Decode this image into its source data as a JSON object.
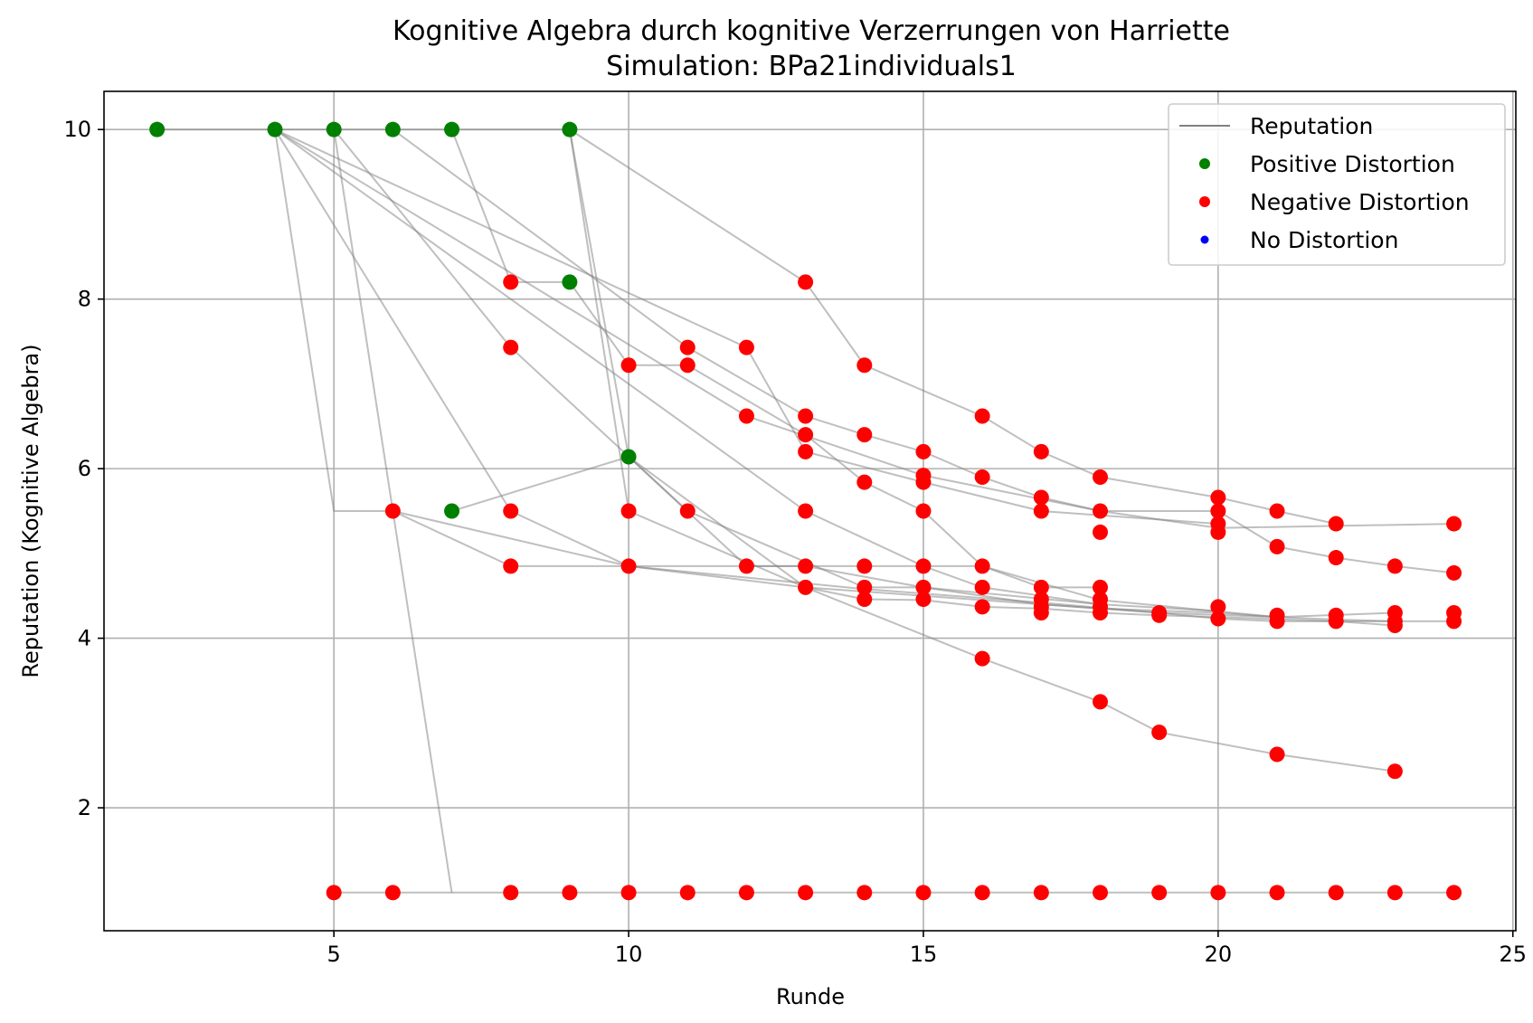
{
  "chart_data": {
    "type": "scatter",
    "title": "Kognitive Algebra durch kognitive Verzerrungen von Harriette",
    "subtitle": "Simulation: BPa21individuals1",
    "xlabel": "Runde",
    "ylabel": "Reputation (Kognitive Algebra)",
    "xlim": [
      1.1,
      25.05
    ],
    "ylim": [
      0.55,
      10.45
    ],
    "xticks": [
      5,
      10,
      15,
      20,
      25
    ],
    "yticks": [
      2,
      4,
      6,
      8,
      10
    ],
    "grid": true,
    "legend_position": "top-right",
    "legend": [
      {
        "label": "Reputation",
        "kind": "line",
        "color": "#808080"
      },
      {
        "label": "Positive Distortion",
        "kind": "marker",
        "color": "#008000"
      },
      {
        "label": "Negative Distortion",
        "kind": "marker",
        "color": "#ff0000"
      },
      {
        "label": "No Distortion",
        "kind": "marker",
        "color": "#0000ff"
      }
    ],
    "colors": {
      "positive": "#008000",
      "negative": "#ff0000",
      "line": "#808080"
    },
    "lines": [
      [
        [
          2,
          10
        ],
        [
          4,
          10
        ],
        [
          5,
          10
        ],
        [
          6,
          10
        ],
        [
          7,
          10
        ],
        [
          9,
          10
        ]
      ],
      [
        [
          5,
          1
        ],
        [
          6,
          1
        ],
        [
          8,
          1
        ],
        [
          9,
          1
        ],
        [
          10,
          1
        ],
        [
          11,
          1
        ],
        [
          12,
          1
        ],
        [
          13,
          1
        ],
        [
          14,
          1
        ],
        [
          15,
          1
        ],
        [
          16,
          1
        ],
        [
          17,
          1
        ],
        [
          18,
          1
        ],
        [
          19,
          1
        ],
        [
          20,
          1
        ],
        [
          21,
          1
        ],
        [
          22,
          1
        ],
        [
          23,
          1
        ],
        [
          24,
          1
        ]
      ],
      [
        [
          9,
          10
        ],
        [
          13,
          8.2
        ],
        [
          14,
          7.22
        ],
        [
          16,
          6.62
        ],
        [
          17,
          6.2
        ],
        [
          18,
          5.9
        ],
        [
          20,
          5.66
        ],
        [
          21,
          5.5
        ],
        [
          22,
          5.35
        ]
      ],
      [
        [
          7,
          10
        ],
        [
          8,
          8.2
        ],
        [
          9,
          8.2
        ],
        [
          10,
          7.22
        ],
        [
          11,
          7.22
        ],
        [
          13,
          6.4
        ],
        [
          14,
          5.84
        ],
        [
          15,
          5.5
        ],
        [
          16,
          4.85
        ],
        [
          17,
          4.6
        ],
        [
          18,
          4.6
        ]
      ],
      [
        [
          6,
          10
        ],
        [
          11,
          7.43
        ],
        [
          13,
          6.62
        ],
        [
          14,
          6.4
        ],
        [
          15,
          6.2
        ],
        [
          16,
          5.9
        ],
        [
          17,
          5.66
        ],
        [
          18,
          5.5
        ],
        [
          20,
          5.5
        ],
        [
          21,
          5.08
        ],
        [
          22,
          4.95
        ],
        [
          23,
          4.85
        ],
        [
          24,
          4.77
        ]
      ],
      [
        [
          5,
          10
        ],
        [
          8,
          7.43
        ],
        [
          11,
          5.5
        ],
        [
          14,
          4.6
        ],
        [
          15,
          4.6
        ],
        [
          18,
          4.4
        ]
      ],
      [
        [
          4,
          10
        ],
        [
          12,
          7.43
        ],
        [
          13,
          6.2
        ],
        [
          15,
          5.84
        ],
        [
          17,
          5.5
        ],
        [
          20,
          5.35
        ]
      ],
      [
        [
          4,
          10
        ],
        [
          12,
          6.62
        ],
        [
          15,
          5.92
        ],
        [
          18,
          5.5
        ],
        [
          20,
          5.3
        ],
        [
          24,
          5.35
        ]
      ],
      [
        [
          4,
          10
        ],
        [
          13,
          5.5
        ],
        [
          15,
          4.85
        ],
        [
          16,
          4.6
        ],
        [
          17,
          4.5
        ],
        [
          18,
          4.4
        ],
        [
          20,
          4.32
        ]
      ],
      [
        [
          4,
          10
        ],
        [
          8,
          5.5
        ],
        [
          10,
          4.85
        ],
        [
          13,
          4.6
        ],
        [
          15,
          4.5
        ],
        [
          18,
          4.35
        ],
        [
          20,
          4.3
        ],
        [
          21,
          4.25
        ],
        [
          22,
          4.22
        ],
        [
          23,
          4.2
        ],
        [
          24,
          4.2
        ]
      ],
      [
        [
          4,
          10
        ],
        [
          5,
          5.5
        ],
        [
          6,
          5.5
        ],
        [
          7,
          1
        ]
      ],
      [
        [
          7,
          5.5
        ],
        [
          10,
          6.14
        ],
        [
          12,
          4.85
        ],
        [
          14,
          4.85
        ],
        [
          16,
          4.85
        ],
        [
          18,
          4.45
        ],
        [
          21,
          4.25
        ]
      ],
      [
        [
          6,
          5.5
        ],
        [
          8,
          4.85
        ],
        [
          10,
          4.85
        ],
        [
          13,
          4.85
        ],
        [
          15,
          4.6
        ],
        [
          17,
          4.4
        ],
        [
          19,
          4.3
        ],
        [
          21,
          4.25
        ],
        [
          23,
          4.3
        ]
      ],
      [
        [
          9,
          10
        ],
        [
          10,
          6.14
        ],
        [
          13,
          4.6
        ],
        [
          14,
          4.46
        ],
        [
          15,
          4.45
        ],
        [
          16,
          4.37
        ],
        [
          17,
          4.35
        ],
        [
          18,
          4.3
        ],
        [
          19,
          4.27
        ],
        [
          20,
          4.25
        ],
        [
          22,
          4.2
        ],
        [
          23,
          4.15
        ]
      ],
      [
        [
          5,
          10
        ],
        [
          6,
          5.5
        ],
        [
          10,
          4.85
        ],
        [
          14,
          4.58
        ],
        [
          17,
          4.42
        ],
        [
          19,
          4.3
        ],
        [
          20,
          4.23
        ],
        [
          21,
          4.2
        ],
        [
          22,
          4.2
        ],
        [
          23,
          4.2
        ]
      ],
      [
        [
          9,
          10
        ],
        [
          10,
          5.5
        ],
        [
          13,
          4.6
        ],
        [
          16,
          3.76
        ],
        [
          18,
          3.25
        ],
        [
          19,
          2.89
        ],
        [
          21,
          2.63
        ],
        [
          23,
          2.43
        ]
      ]
    ],
    "positive_points": [
      [
        2,
        10
      ],
      [
        4,
        10
      ],
      [
        5,
        10
      ],
      [
        6,
        10
      ],
      [
        7,
        10
      ],
      [
        9,
        10
      ],
      [
        9,
        8.2
      ],
      [
        10,
        6.14
      ],
      [
        7,
        5.5
      ]
    ],
    "negative_points": [
      [
        8,
        8.2
      ],
      [
        8,
        7.43
      ],
      [
        10,
        7.22
      ],
      [
        11,
        7.43
      ],
      [
        11,
        7.22
      ],
      [
        12,
        7.43
      ],
      [
        12,
        6.62
      ],
      [
        13,
        8.2
      ],
      [
        13,
        6.62
      ],
      [
        13,
        6.4
      ],
      [
        13,
        6.2
      ],
      [
        14,
        7.22
      ],
      [
        14,
        6.4
      ],
      [
        14,
        5.84
      ],
      [
        16,
        6.62
      ],
      [
        17,
        6.2
      ],
      [
        15,
        6.2
      ],
      [
        15,
        5.92
      ],
      [
        15,
        5.84
      ],
      [
        16,
        5.9
      ],
      [
        17,
        5.66
      ],
      [
        18,
        5.9
      ],
      [
        17,
        5.5
      ],
      [
        18,
        5.5
      ],
      [
        18,
        5.25
      ],
      [
        20,
        5.66
      ],
      [
        20,
        5.5
      ],
      [
        20,
        5.35
      ],
      [
        20,
        5.25
      ],
      [
        21,
        5.5
      ],
      [
        22,
        5.35
      ],
      [
        24,
        5.35
      ],
      [
        21,
        5.08
      ],
      [
        22,
        4.95
      ],
      [
        23,
        4.85
      ],
      [
        24,
        4.77
      ],
      [
        6,
        5.5
      ],
      [
        8,
        5.5
      ],
      [
        10,
        5.5
      ],
      [
        11,
        5.5
      ],
      [
        13,
        5.5
      ],
      [
        15,
        5.5
      ],
      [
        8,
        4.85
      ],
      [
        10,
        4.85
      ],
      [
        12,
        4.85
      ],
      [
        13,
        4.85
      ],
      [
        14,
        4.85
      ],
      [
        15,
        4.85
      ],
      [
        16,
        4.85
      ],
      [
        13,
        4.6
      ],
      [
        14,
        4.6
      ],
      [
        14,
        4.46
      ],
      [
        15,
        4.6
      ],
      [
        15,
        4.46
      ],
      [
        16,
        4.6
      ],
      [
        16,
        4.37
      ],
      [
        17,
        4.6
      ],
      [
        17,
        4.46
      ],
      [
        17,
        4.37
      ],
      [
        17,
        4.3
      ],
      [
        18,
        4.6
      ],
      [
        18,
        4.46
      ],
      [
        18,
        4.37
      ],
      [
        18,
        4.3
      ],
      [
        19,
        4.3
      ],
      [
        19,
        4.27
      ],
      [
        20,
        4.37
      ],
      [
        20,
        4.23
      ],
      [
        21,
        4.27
      ],
      [
        21,
        4.2
      ],
      [
        22,
        4.27
      ],
      [
        22,
        4.2
      ],
      [
        23,
        4.3
      ],
      [
        23,
        4.2
      ],
      [
        23,
        4.15
      ],
      [
        24,
        4.3
      ],
      [
        24,
        4.2
      ],
      [
        16,
        3.76
      ],
      [
        18,
        3.25
      ],
      [
        19,
        2.89
      ],
      [
        21,
        2.63
      ],
      [
        23,
        2.43
      ],
      [
        5,
        1
      ],
      [
        6,
        1
      ],
      [
        8,
        1
      ],
      [
        9,
        1
      ],
      [
        10,
        1
      ],
      [
        11,
        1
      ],
      [
        12,
        1
      ],
      [
        13,
        1
      ],
      [
        14,
        1
      ],
      [
        15,
        1
      ],
      [
        16,
        1
      ],
      [
        17,
        1
      ],
      [
        18,
        1
      ],
      [
        19,
        1
      ],
      [
        20,
        1
      ],
      [
        21,
        1
      ],
      [
        22,
        1
      ],
      [
        23,
        1
      ],
      [
        24,
        1
      ]
    ],
    "neutral_points": []
  }
}
